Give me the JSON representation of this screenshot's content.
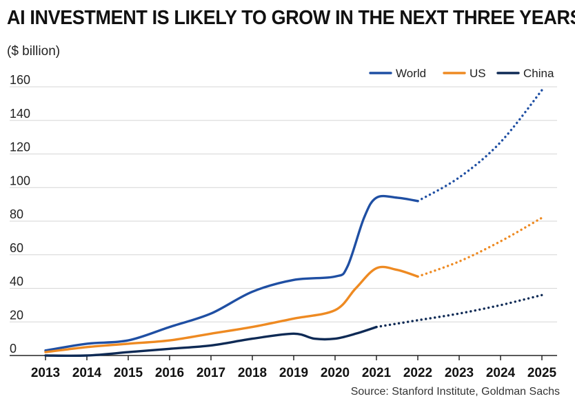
{
  "header": {
    "title": "AI INVESTMENT IS LIKELY TO GROW IN THE NEXT THREE YEARS",
    "unit": "($ billion)",
    "source": "Source: Stanford Institute, Goldman Sachs"
  },
  "chart_data": {
    "type": "line",
    "title": "AI INVESTMENT IS LIKELY TO GROW IN THE NEXT THREE YEARS",
    "ylabel": "($ billion)",
    "xlabel": "",
    "ylim": [
      0,
      160
    ],
    "yticks": [
      0,
      20,
      40,
      60,
      80,
      100,
      120,
      140,
      160
    ],
    "xlim": [
      2013,
      2025
    ],
    "xticks": [
      2013,
      2014,
      2015,
      2016,
      2017,
      2018,
      2019,
      2020,
      2021,
      2022,
      2023,
      2024,
      2025
    ],
    "grid": "horizontal",
    "legend": "top-right",
    "series": [
      {
        "name": "World",
        "color": "#1f4fa3",
        "x": [
          2013,
          2014,
          2015,
          2016,
          2017,
          2018,
          2019,
          2020,
          2020.3,
          2020.7,
          2021,
          2021.5,
          2022
        ],
        "values": [
          3,
          7,
          9,
          17,
          25,
          38,
          45,
          47,
          53,
          82,
          94,
          94,
          92
        ],
        "projection_x": [
          2022,
          2023,
          2024,
          2025
        ],
        "projection_values": [
          92,
          106,
          127,
          158
        ]
      },
      {
        "name": "US",
        "color": "#ee8a22",
        "x": [
          2013,
          2014,
          2015,
          2016,
          2017,
          2018,
          2019,
          2020,
          2020.5,
          2021,
          2021.5,
          2022
        ],
        "values": [
          2,
          5,
          7,
          9,
          13,
          17,
          22,
          27,
          40,
          52,
          51,
          47
        ],
        "projection_x": [
          2022,
          2023,
          2024,
          2025
        ],
        "projection_values": [
          47,
          56,
          68,
          82
        ]
      },
      {
        "name": "China",
        "color": "#0e2a55",
        "x": [
          2013,
          2014,
          2015,
          2016,
          2017,
          2018,
          2019,
          2019.5,
          2020,
          2020.5,
          2021
        ],
        "values": [
          0,
          0,
          2,
          4,
          6,
          10,
          13,
          10,
          10,
          13,
          17
        ],
        "projection_x": [
          2021,
          2022,
          2023,
          2024,
          2025
        ],
        "projection_values": [
          17,
          21,
          25,
          30,
          36
        ]
      }
    ]
  }
}
